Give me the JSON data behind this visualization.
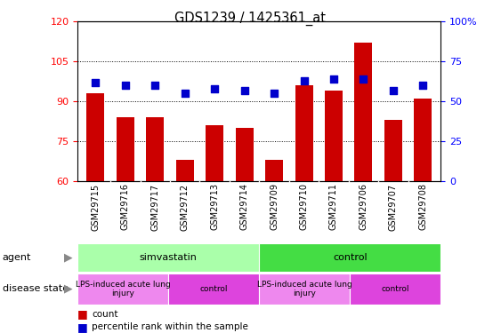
{
  "title": "GDS1239 / 1425361_at",
  "samples": [
    "GSM29715",
    "GSM29716",
    "GSM29717",
    "GSM29712",
    "GSM29713",
    "GSM29714",
    "GSM29709",
    "GSM29710",
    "GSM29711",
    "GSM29706",
    "GSM29707",
    "GSM29708"
  ],
  "count_values": [
    93,
    84,
    84,
    68,
    81,
    80,
    68,
    96,
    94,
    112,
    83,
    91
  ],
  "percentile_values": [
    62,
    60,
    60,
    55,
    58,
    57,
    55,
    63,
    64,
    64,
    57,
    60
  ],
  "ylim_left": [
    60,
    120
  ],
  "ylim_right": [
    0,
    100
  ],
  "yticks_left": [
    60,
    75,
    90,
    105,
    120
  ],
  "yticks_right": [
    0,
    25,
    50,
    75,
    100
  ],
  "bar_color": "#CC0000",
  "scatter_color": "#0000CC",
  "agent_groups": [
    {
      "label": "simvastatin",
      "start": 0,
      "end": 6,
      "color": "#AAFFAA"
    },
    {
      "label": "control",
      "start": 6,
      "end": 12,
      "color": "#44DD44"
    }
  ],
  "disease_groups": [
    {
      "label": "LPS-induced acute lung\ninjury",
      "start": 0,
      "end": 3,
      "color": "#EE88EE"
    },
    {
      "label": "control",
      "start": 3,
      "end": 6,
      "color": "#DD44DD"
    },
    {
      "label": "LPS-induced acute lung\ninjury",
      "start": 6,
      "end": 9,
      "color": "#EE88EE"
    },
    {
      "label": "control",
      "start": 9,
      "end": 12,
      "color": "#DD44DD"
    }
  ],
  "legend_count_label": "count",
  "legend_pct_label": "percentile rank within the sample",
  "agent_label": "agent",
  "disease_label": "disease state"
}
